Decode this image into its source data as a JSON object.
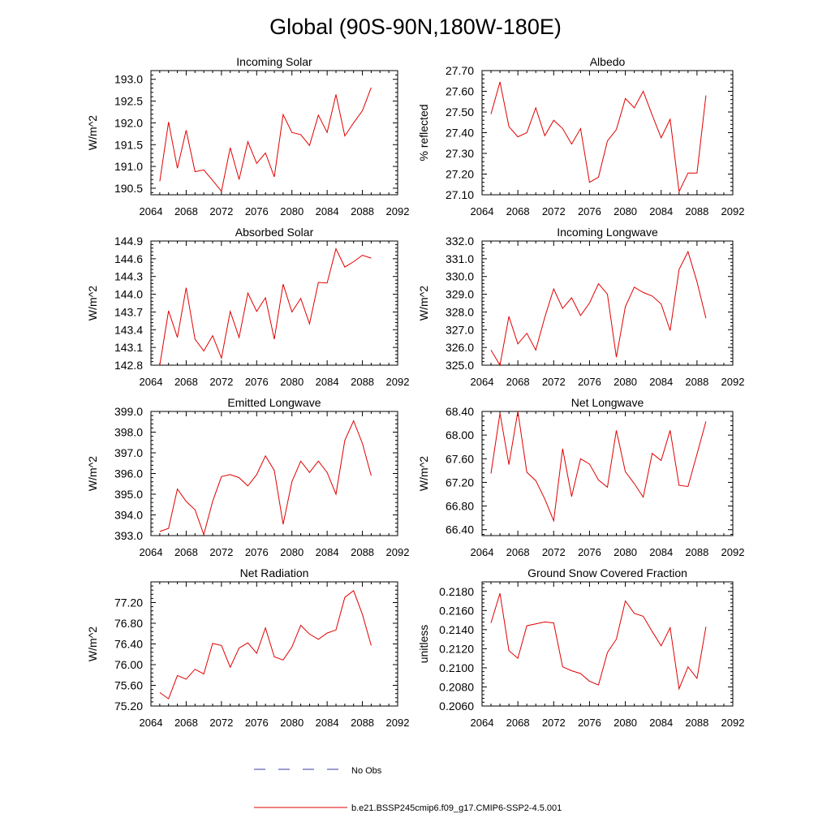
{
  "figure": {
    "title": "Global (90S-90N,180W-180E)",
    "legend": [
      {
        "label": "No Obs",
        "color": "#3a3aa8",
        "style": "dashed"
      },
      {
        "label": "b.e21.BSSP245cmip6.f09_g17.CMIP6-SSP2-4.5.001",
        "color": "#e00000",
        "style": "solid"
      }
    ]
  },
  "chart_data": [
    {
      "type": "line",
      "title": "Incoming Solar",
      "ylabel": "W/m^2",
      "xlim": [
        2064,
        2092
      ],
      "ylim": [
        190.35,
        193.2
      ],
      "xticks": [
        "2064",
        "2068",
        "2072",
        "2076",
        "2080",
        "2084",
        "2088",
        "2092"
      ],
      "yticks": [
        "190.5",
        "191.0",
        "191.5",
        "192.0",
        "192.5",
        "193.0"
      ],
      "color": "#e00000",
      "x": [
        2065,
        2066,
        2067,
        2068,
        2069,
        2070,
        2071,
        2072,
        2073,
        2074,
        2075,
        2076,
        2077,
        2078,
        2079,
        2080,
        2081,
        2082,
        2083,
        2084,
        2085,
        2086,
        2087,
        2088,
        2089
      ],
      "values": [
        190.66,
        192.02,
        190.96,
        191.83,
        190.88,
        190.92,
        190.68,
        190.43,
        191.43,
        190.7,
        191.57,
        191.07,
        191.31,
        190.76,
        192.19,
        191.78,
        191.73,
        191.48,
        192.18,
        191.78,
        192.65,
        191.7,
        192.0,
        192.28,
        192.81
      ]
    },
    {
      "type": "line",
      "title": "Albedo",
      "ylabel": "% reflected",
      "xlim": [
        2064,
        2092
      ],
      "ylim": [
        27.1,
        27.7
      ],
      "xticks": [
        "2064",
        "2068",
        "2072",
        "2076",
        "2080",
        "2084",
        "2088",
        "2092"
      ],
      "yticks": [
        "27.10",
        "27.20",
        "27.30",
        "27.40",
        "27.50",
        "27.60",
        "27.70"
      ],
      "color": "#e00000",
      "x": [
        2065,
        2066,
        2067,
        2068,
        2069,
        2070,
        2071,
        2072,
        2073,
        2074,
        2075,
        2076,
        2077,
        2078,
        2079,
        2080,
        2081,
        2082,
        2083,
        2084,
        2085,
        2086,
        2087,
        2088,
        2089
      ],
      "values": [
        27.49,
        27.645,
        27.43,
        27.38,
        27.4,
        27.52,
        27.385,
        27.46,
        27.42,
        27.345,
        27.42,
        27.16,
        27.185,
        27.36,
        27.415,
        27.565,
        27.52,
        27.6,
        27.485,
        27.375,
        27.465,
        27.115,
        27.205,
        27.205,
        27.58
      ]
    },
    {
      "type": "line",
      "title": "Absorbed Solar",
      "ylabel": "W/m^2",
      "xlim": [
        2064,
        2092
      ],
      "ylim": [
        142.8,
        144.9
      ],
      "xticks": [
        "2064",
        "2068",
        "2072",
        "2076",
        "2080",
        "2084",
        "2088",
        "2092"
      ],
      "yticks": [
        "142.8",
        "143.1",
        "143.4",
        "143.7",
        "144.0",
        "144.3",
        "144.6",
        "144.9"
      ],
      "color": "#e00000",
      "x": [
        2065,
        2066,
        2067,
        2068,
        2069,
        2070,
        2071,
        2072,
        2073,
        2074,
        2075,
        2076,
        2077,
        2078,
        2079,
        2080,
        2081,
        2082,
        2083,
        2084,
        2085,
        2086,
        2087,
        2088,
        2089
      ],
      "values": [
        142.8,
        143.72,
        143.27,
        144.11,
        143.24,
        143.04,
        143.3,
        142.92,
        143.71,
        143.27,
        144.02,
        143.71,
        143.94,
        143.24,
        144.17,
        143.7,
        143.93,
        143.5,
        144.2,
        144.19,
        144.77,
        144.46,
        144.55,
        144.66,
        144.61
      ]
    },
    {
      "type": "line",
      "title": "Incoming Longwave",
      "ylabel": "W/m^2",
      "xlim": [
        2064,
        2092
      ],
      "ylim": [
        325.0,
        332.0
      ],
      "xticks": [
        "2064",
        "2068",
        "2072",
        "2076",
        "2080",
        "2084",
        "2088",
        "2092"
      ],
      "yticks": [
        "325.0",
        "326.0",
        "327.0",
        "328.0",
        "329.0",
        "330.0",
        "331.0",
        "332.0"
      ],
      "color": "#e00000",
      "x": [
        2065,
        2066,
        2067,
        2068,
        2069,
        2070,
        2071,
        2072,
        2073,
        2074,
        2075,
        2076,
        2077,
        2078,
        2079,
        2080,
        2081,
        2082,
        2083,
        2084,
        2085,
        2086,
        2087,
        2088,
        2089
      ],
      "values": [
        325.85,
        325.0,
        327.75,
        326.2,
        326.8,
        325.85,
        327.7,
        329.3,
        328.2,
        328.8,
        327.8,
        328.5,
        329.6,
        329.0,
        325.45,
        328.3,
        329.4,
        329.1,
        328.9,
        328.45,
        326.95,
        330.4,
        331.4,
        329.7,
        327.65
      ]
    },
    {
      "type": "line",
      "title": "Emitted Longwave",
      "ylabel": "W/m^2",
      "xlim": [
        2064,
        2092
      ],
      "ylim": [
        393.0,
        399.0
      ],
      "xticks": [
        "2064",
        "2068",
        "2072",
        "2076",
        "2080",
        "2084",
        "2088",
        "2092"
      ],
      "yticks": [
        "393.0",
        "394.0",
        "395.0",
        "396.0",
        "397.0",
        "398.0",
        "399.0"
      ],
      "color": "#e00000",
      "x": [
        2065,
        2066,
        2067,
        2068,
        2069,
        2070,
        2071,
        2072,
        2073,
        2074,
        2075,
        2076,
        2077,
        2078,
        2079,
        2080,
        2081,
        2082,
        2083,
        2084,
        2085,
        2086,
        2087,
        2088,
        2089
      ],
      "values": [
        393.2,
        393.35,
        395.25,
        394.65,
        394.25,
        393.05,
        394.65,
        395.85,
        395.95,
        395.8,
        395.4,
        395.95,
        396.85,
        396.15,
        393.55,
        395.6,
        396.6,
        396.05,
        396.6,
        396.05,
        395.0,
        397.6,
        398.55,
        397.45,
        395.9
      ]
    },
    {
      "type": "line",
      "title": "Net Longwave",
      "ylabel": "W/m^2",
      "xlim": [
        2064,
        2092
      ],
      "ylim": [
        66.3,
        68.4
      ],
      "xticks": [
        "2064",
        "2068",
        "2072",
        "2076",
        "2080",
        "2084",
        "2088",
        "2092"
      ],
      "yticks": [
        "66.40",
        "66.80",
        "67.20",
        "67.60",
        "68.00",
        "68.40"
      ],
      "color": "#e00000",
      "x": [
        2065,
        2066,
        2067,
        2068,
        2069,
        2070,
        2071,
        2072,
        2073,
        2074,
        2075,
        2076,
        2077,
        2078,
        2079,
        2080,
        2081,
        2082,
        2083,
        2084,
        2085,
        2086,
        2087,
        2088,
        2089
      ],
      "values": [
        67.35,
        68.37,
        67.5,
        68.4,
        67.37,
        67.23,
        66.92,
        66.55,
        67.77,
        66.96,
        67.6,
        67.51,
        67.24,
        67.12,
        68.08,
        67.38,
        67.18,
        66.95,
        67.69,
        67.57,
        68.08,
        67.15,
        67.13,
        67.68,
        68.23
      ]
    },
    {
      "type": "line",
      "title": "Net Radiation",
      "ylabel": "W/m^2",
      "xlim": [
        2064,
        2092
      ],
      "ylim": [
        75.2,
        77.6
      ],
      "xticks": [
        "2064",
        "2068",
        "2072",
        "2076",
        "2080",
        "2084",
        "2088",
        "2092"
      ],
      "yticks": [
        "75.20",
        "75.60",
        "76.00",
        "76.40",
        "76.80",
        "77.20"
      ],
      "color": "#e00000",
      "x": [
        2065,
        2066,
        2067,
        2068,
        2069,
        2070,
        2071,
        2072,
        2073,
        2074,
        2075,
        2076,
        2077,
        2078,
        2079,
        2080,
        2081,
        2082,
        2083,
        2084,
        2085,
        2086,
        2087,
        2088,
        2089
      ],
      "values": [
        75.46,
        75.34,
        75.79,
        75.72,
        75.91,
        75.82,
        76.41,
        76.37,
        75.95,
        76.32,
        76.42,
        76.22,
        76.71,
        76.15,
        76.09,
        76.34,
        76.76,
        76.59,
        76.49,
        76.61,
        76.67,
        77.3,
        77.43,
        76.97,
        76.37
      ]
    },
    {
      "type": "line",
      "title": "Ground Snow Covered Fraction",
      "ylabel": "unitless",
      "xlim": [
        2064,
        2092
      ],
      "ylim": [
        0.206,
        0.219
      ],
      "xticks": [
        "2064",
        "2068",
        "2072",
        "2076",
        "2080",
        "2084",
        "2088",
        "2092"
      ],
      "yticks": [
        "0.2060",
        "0.2080",
        "0.2100",
        "0.2120",
        "0.2140",
        "0.2160",
        "0.2180"
      ],
      "color": "#e00000",
      "x": [
        2065,
        2066,
        2067,
        2068,
        2069,
        2070,
        2071,
        2072,
        2073,
        2074,
        2075,
        2076,
        2077,
        2078,
        2079,
        2080,
        2081,
        2082,
        2083,
        2084,
        2085,
        2086,
        2087,
        2088,
        2089
      ],
      "values": [
        0.2147,
        0.2178,
        0.2118,
        0.211,
        0.2144,
        0.2146,
        0.2148,
        0.2147,
        0.2101,
        0.2097,
        0.2094,
        0.2086,
        0.2082,
        0.2116,
        0.213,
        0.217,
        0.2157,
        0.2154,
        0.2138,
        0.2123,
        0.2142,
        0.2078,
        0.2101,
        0.2089,
        0.2143
      ]
    }
  ]
}
